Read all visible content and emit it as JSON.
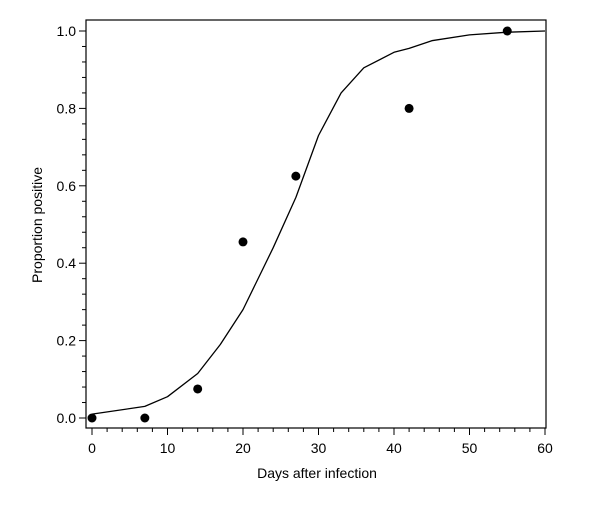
{
  "chart_data": {
    "type": "scatter",
    "title": "",
    "xlabel": "Days after infection",
    "ylabel": "Proportion positive",
    "xlim": [
      -1,
      60
    ],
    "ylim": [
      -0.03,
      1.03
    ],
    "x_ticks": [
      0,
      10,
      20,
      30,
      40,
      50,
      60
    ],
    "y_ticks": [
      0.0,
      0.2,
      0.4,
      0.6,
      0.8,
      1.0
    ],
    "x_tick_labels": [
      "0",
      "10",
      "20",
      "30",
      "40",
      "50",
      "60"
    ],
    "y_tick_labels": [
      "0.0",
      "0.2",
      "0.4",
      "0.6",
      "0.8",
      "1.0"
    ],
    "grid": false,
    "legend": "none",
    "series": [
      {
        "type": "scatter",
        "x": [
          0,
          7,
          14,
          20,
          27,
          42,
          55
        ],
        "y": [
          0.0,
          0.0,
          0.075,
          0.455,
          0.625,
          0.8,
          1.0
        ]
      },
      {
        "type": "line",
        "x": [
          0,
          7,
          10,
          14,
          17,
          20,
          24,
          27,
          30,
          33,
          36,
          40,
          42,
          45,
          50,
          55,
          60
        ],
        "y": [
          0.01,
          0.03,
          0.055,
          0.115,
          0.19,
          0.28,
          0.44,
          0.57,
          0.73,
          0.84,
          0.905,
          0.945,
          0.955,
          0.975,
          0.99,
          0.997,
          1.0
        ]
      }
    ],
    "colors": {
      "markers": "#000000",
      "line": "#000000",
      "axes": "#000000"
    }
  }
}
